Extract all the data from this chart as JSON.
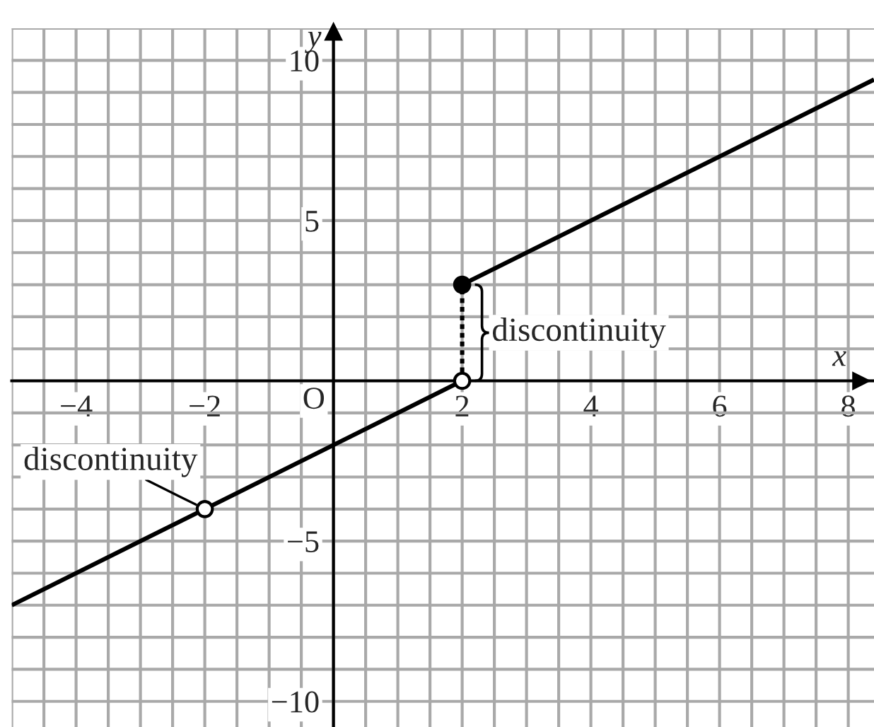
{
  "chart_data": {
    "type": "line",
    "xlabel": "x",
    "ylabel": "y",
    "xlim": [
      -5,
      8.4
    ],
    "ylim": [
      -10.8,
      11
    ],
    "xticks": [
      {
        "value": -5,
        "label": null
      },
      {
        "value": -4.5,
        "label": null
      },
      {
        "value": -4,
        "label": "−4"
      },
      {
        "value": -3.5,
        "label": null
      },
      {
        "value": -3,
        "label": null
      },
      {
        "value": -2.5,
        "label": null
      },
      {
        "value": -2,
        "label": "−2"
      },
      {
        "value": -1.5,
        "label": null
      },
      {
        "value": -1,
        "label": null
      },
      {
        "value": -0.5,
        "label": null
      },
      {
        "value": 0,
        "label": null
      },
      {
        "value": 0.5,
        "label": null
      },
      {
        "value": 1,
        "label": null
      },
      {
        "value": 1.5,
        "label": null
      },
      2,
      {
        "value": 2.5,
        "label": null
      },
      {
        "value": 3,
        "label": null
      },
      {
        "value": 3.5,
        "label": null
      },
      4,
      {
        "value": 4.5,
        "label": null
      },
      {
        "value": 5,
        "label": null
      },
      {
        "value": 5.5,
        "label": null
      },
      6,
      {
        "value": 6.5,
        "label": null
      },
      {
        "value": 7,
        "label": null
      },
      {
        "value": 7.5,
        "label": null
      },
      8
    ],
    "yticks": [
      {
        "value": -10,
        "label": "−10"
      },
      {
        "value": -9,
        "label": null
      },
      {
        "value": -8,
        "label": null
      },
      {
        "value": -7,
        "label": null
      },
      {
        "value": -6,
        "label": null
      },
      {
        "value": -5,
        "label": "−5"
      },
      {
        "value": -4,
        "label": null
      },
      {
        "value": -3,
        "label": null
      },
      {
        "value": -2,
        "label": null
      },
      {
        "value": -1,
        "label": null
      },
      {
        "value": 0,
        "label": null
      },
      {
        "value": 1,
        "label": null
      },
      {
        "value": 2,
        "label": null
      },
      {
        "value": 3,
        "label": null
      },
      {
        "value": 4,
        "label": null
      },
      5,
      {
        "value": 6,
        "label": null
      },
      {
        "value": 7,
        "label": null
      },
      {
        "value": 8,
        "label": null
      },
      {
        "value": 9,
        "label": null
      },
      10,
      {
        "value": 11,
        "label": null
      }
    ],
    "grid": true,
    "series": [
      {
        "x": [
          -5,
          2
        ],
        "values": [
          -7,
          0
        ],
        "color": "#000000",
        "marker": "none",
        "line_style": "solid"
      },
      {
        "x": [
          2,
          8.4
        ],
        "values": [
          3,
          9.4
        ],
        "color": "#000000",
        "marker": "none",
        "line_style": "solid"
      },
      {
        "x": [
          2,
          2
        ],
        "values": [
          0,
          3
        ],
        "color": "#000000",
        "marker": "none",
        "line_style": "dotted"
      },
      {
        "type": "scatter",
        "x": [
          2
        ],
        "values": [
          3
        ],
        "color": "#000000",
        "marker": "circle"
      },
      {
        "type": "scatter",
        "x": [
          -2,
          2
        ],
        "values": [
          -4,
          0
        ],
        "color": "#ffffff",
        "marker": "circle"
      }
    ],
    "annotations": [
      "O",
      {
        "text": "discontinuity",
        "x": -2,
        "y": -4
      },
      {
        "text": "discontinuity",
        "x": 2,
        "y": 1.5
      }
    ]
  }
}
